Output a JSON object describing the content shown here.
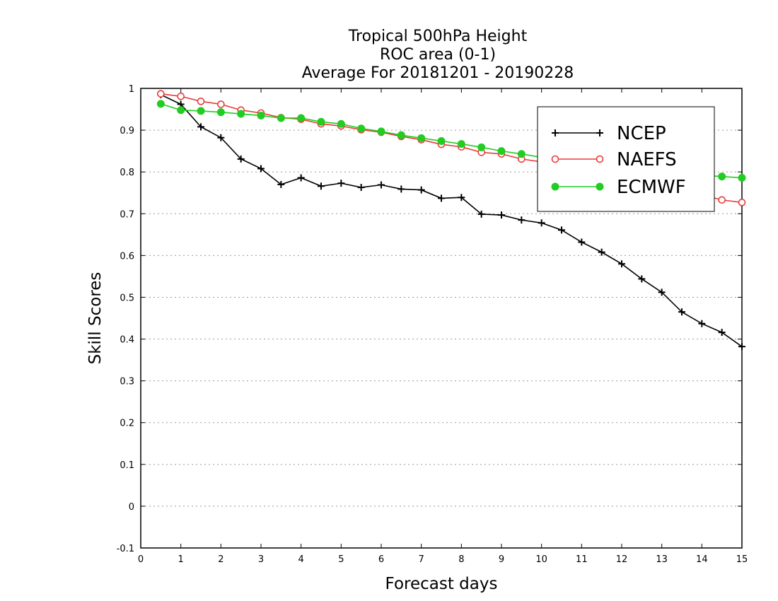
{
  "chart_data": {
    "type": "line",
    "title": [
      "Tropical 500hPa Height",
      "ROC area (0-1)",
      "Average For 20181201 - 20190228"
    ],
    "xlabel": "Forecast days",
    "ylabel": "Skill Scores",
    "xlim": [
      0,
      15
    ],
    "ylim": [
      -0.1,
      1
    ],
    "xticks": [
      0,
      1,
      2,
      3,
      4,
      5,
      6,
      7,
      8,
      9,
      10,
      11,
      12,
      13,
      14,
      15
    ],
    "yticks": [
      -0.1,
      0,
      0.1,
      0.2,
      0.3,
      0.4,
      0.5,
      0.6,
      0.7,
      0.8,
      0.9,
      1
    ],
    "ytick_labels": [
      "-0.1",
      "0",
      "0.1",
      "0.2",
      "0.3",
      "0.4",
      "0.5",
      "0.6",
      "0.7",
      "0.8",
      "0.9",
      "1"
    ],
    "grid": "horizontal dotted",
    "legend_position": "top-right",
    "x": [
      0.5,
      1,
      1.5,
      2,
      2.5,
      3,
      3.5,
      4,
      4.5,
      5,
      5.5,
      6,
      6.5,
      7,
      7.5,
      8,
      8.5,
      9,
      9.5,
      10,
      10.5,
      11,
      11.5,
      12,
      12.5,
      13,
      13.5,
      14,
      14.5,
      15
    ],
    "series": [
      {
        "name": "NCEP",
        "color": "#000000",
        "marker": "plus",
        "values": [
          0.985,
          0.962,
          0.908,
          0.882,
          0.831,
          0.808,
          0.77,
          0.786,
          0.766,
          0.773,
          0.763,
          0.769,
          0.759,
          0.757,
          0.737,
          0.739,
          0.699,
          0.697,
          0.685,
          0.678,
          0.661,
          0.632,
          0.608,
          0.58,
          0.544,
          0.512,
          0.465,
          0.437,
          0.416,
          0.382
        ]
      },
      {
        "name": "NAEFS",
        "color": "#e83c3c",
        "marker": "open-circle",
        "values": [
          0.987,
          0.981,
          0.969,
          0.962,
          0.948,
          0.941,
          0.93,
          0.926,
          0.915,
          0.91,
          0.901,
          0.895,
          0.885,
          0.877,
          0.866,
          0.86,
          0.847,
          0.843,
          0.831,
          0.824,
          0.817,
          0.806,
          0.796,
          0.787,
          0.773,
          0.764,
          0.753,
          0.745,
          0.733,
          0.727
        ]
      },
      {
        "name": "ECMWF",
        "color": "#22cc22",
        "marker": "filled-circle",
        "values": [
          0.963,
          0.948,
          0.946,
          0.943,
          0.939,
          0.935,
          0.929,
          0.929,
          0.92,
          0.915,
          0.904,
          0.897,
          0.888,
          0.881,
          0.874,
          0.867,
          0.859,
          0.85,
          0.843,
          0.835,
          0.829,
          0.822,
          0.815,
          0.81,
          0.805,
          0.8,
          0.796,
          0.792,
          0.789,
          0.786
        ]
      }
    ]
  }
}
